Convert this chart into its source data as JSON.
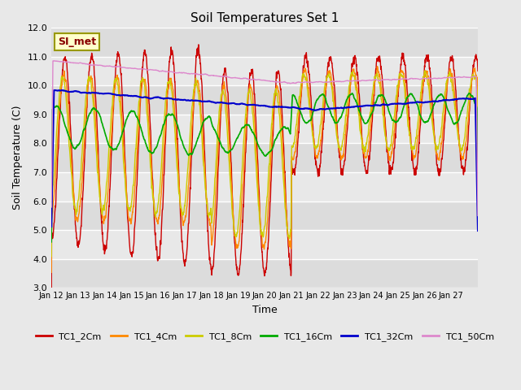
{
  "title": "Soil Temperatures Set 1",
  "xlabel": "Time",
  "ylabel": "Soil Temperature (C)",
  "ylim": [
    3.0,
    12.0
  ],
  "yticks": [
    3.0,
    4.0,
    5.0,
    6.0,
    7.0,
    8.0,
    9.0,
    10.0,
    11.0,
    12.0
  ],
  "xlim": [
    0,
    16
  ],
  "xtick_days": [
    12,
    13,
    14,
    15,
    16,
    17,
    18,
    19,
    20,
    21,
    22,
    23,
    24,
    25,
    26,
    27
  ],
  "bg_color": "#e8e8e8",
  "plot_bg_color": "#f0f0f0",
  "band_colors": [
    "#dcdcdc",
    "#e8e8e8"
  ],
  "grid_color": "#ffffff",
  "series": [
    {
      "label": "TC1_2Cm",
      "color": "#cc0000",
      "lw": 1.0
    },
    {
      "label": "TC1_4Cm",
      "color": "#ff8800",
      "lw": 1.0
    },
    {
      "label": "TC1_8Cm",
      "color": "#cccc00",
      "lw": 1.0
    },
    {
      "label": "TC1_16Cm",
      "color": "#00aa00",
      "lw": 1.2
    },
    {
      "label": "TC1_32Cm",
      "color": "#0000cc",
      "lw": 1.5
    },
    {
      "label": "TC1_50Cm",
      "color": "#dd88cc",
      "lw": 1.0
    }
  ],
  "annotation_text": "SI_met",
  "annotation_color": "#880000",
  "annotation_bg": "#ffffcc",
  "annotation_border": "#999900",
  "figsize": [
    6.4,
    4.8
  ],
  "dpi": 100
}
